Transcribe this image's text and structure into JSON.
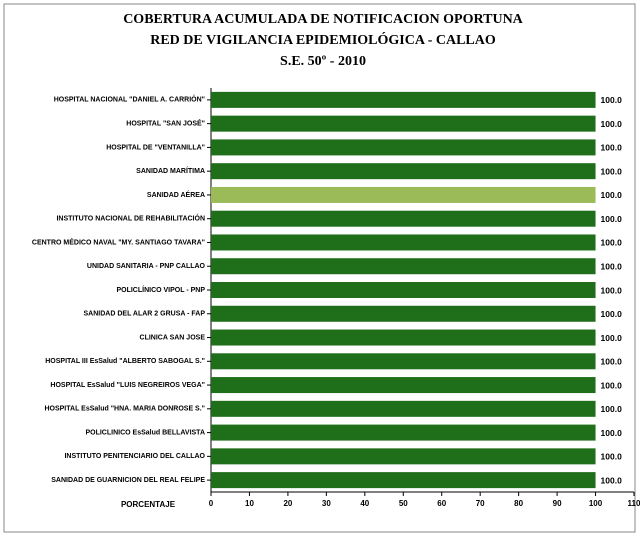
{
  "chart_data": {
    "type": "barh",
    "title": [
      "COBERTURA ACUMULADA DE NOTIFICACION OPORTUNA",
      "RED DE VIGILANCIA EPIDEMIOLÓGICA - CALLAO",
      "S.E. 50º - 2010"
    ],
    "xlabel": "PORCENTAJE",
    "categories": [
      "HOSPITAL NACIONAL \"DANIEL A. CARRIÓN\"",
      "HOSPITAL \"SAN  JOSÉ\"",
      "HOSPITAL DE  \"VENTANILLA\"",
      "SANIDAD MARÍTIMA",
      "SANIDAD AÉREA",
      "INSTITUTO NACIONAL DE REHABILITACIÓN",
      "CENTRO MÉDICO NAVAL \"MY. SANTIAGO TAVARA\"",
      "UNIDAD SANITARIA - PNP CALLAO",
      "POLICLÍNICO  VIPOL - PNP",
      "SANIDAD DEL ALAR 2 GRUSA - FAP",
      "CLINICA SAN JOSE",
      "HOSPITAL III EsSalud \"ALBERTO SABOGAL S.\"",
      "HOSPITAL EsSalud \"LUIS NEGREIROS VEGA\"",
      "HOSPITAL EsSalud \"HNA. MARIA DONROSE S.\"",
      "POLICLINICO EsSalud BELLAVISTA",
      "INSTITUTO PENITENCIARIO  DEL CALLAO",
      "SANIDAD DE GUARNICION DEL REAL FELIPE"
    ],
    "values": [
      100,
      100,
      100,
      100,
      100,
      100,
      100,
      100,
      100,
      100,
      100,
      100,
      100,
      100,
      100,
      100,
      100
    ],
    "value_labels": [
      "100.0",
      "100.0",
      "100.0",
      "100.0",
      "100.0",
      "100.0",
      "100.0",
      "100.0",
      "100.0",
      "100.0",
      "100.0",
      "100.0",
      "100.0",
      "100.0",
      "100.0",
      "100.0",
      "100.0"
    ],
    "colors": [
      "#1f6e1a",
      "#1f6e1a",
      "#1f6e1a",
      "#1f6e1a",
      "#9bbb59",
      "#1f6e1a",
      "#1f6e1a",
      "#1f6e1a",
      "#1f6e1a",
      "#1f6e1a",
      "#1f6e1a",
      "#1f6e1a",
      "#1f6e1a",
      "#1f6e1a",
      "#1f6e1a",
      "#1f6e1a",
      "#1f6e1a"
    ],
    "xlim": [
      0,
      110
    ],
    "xticks": [
      0,
      10,
      20,
      30,
      40,
      50,
      60,
      70,
      80,
      90,
      100,
      110
    ]
  }
}
